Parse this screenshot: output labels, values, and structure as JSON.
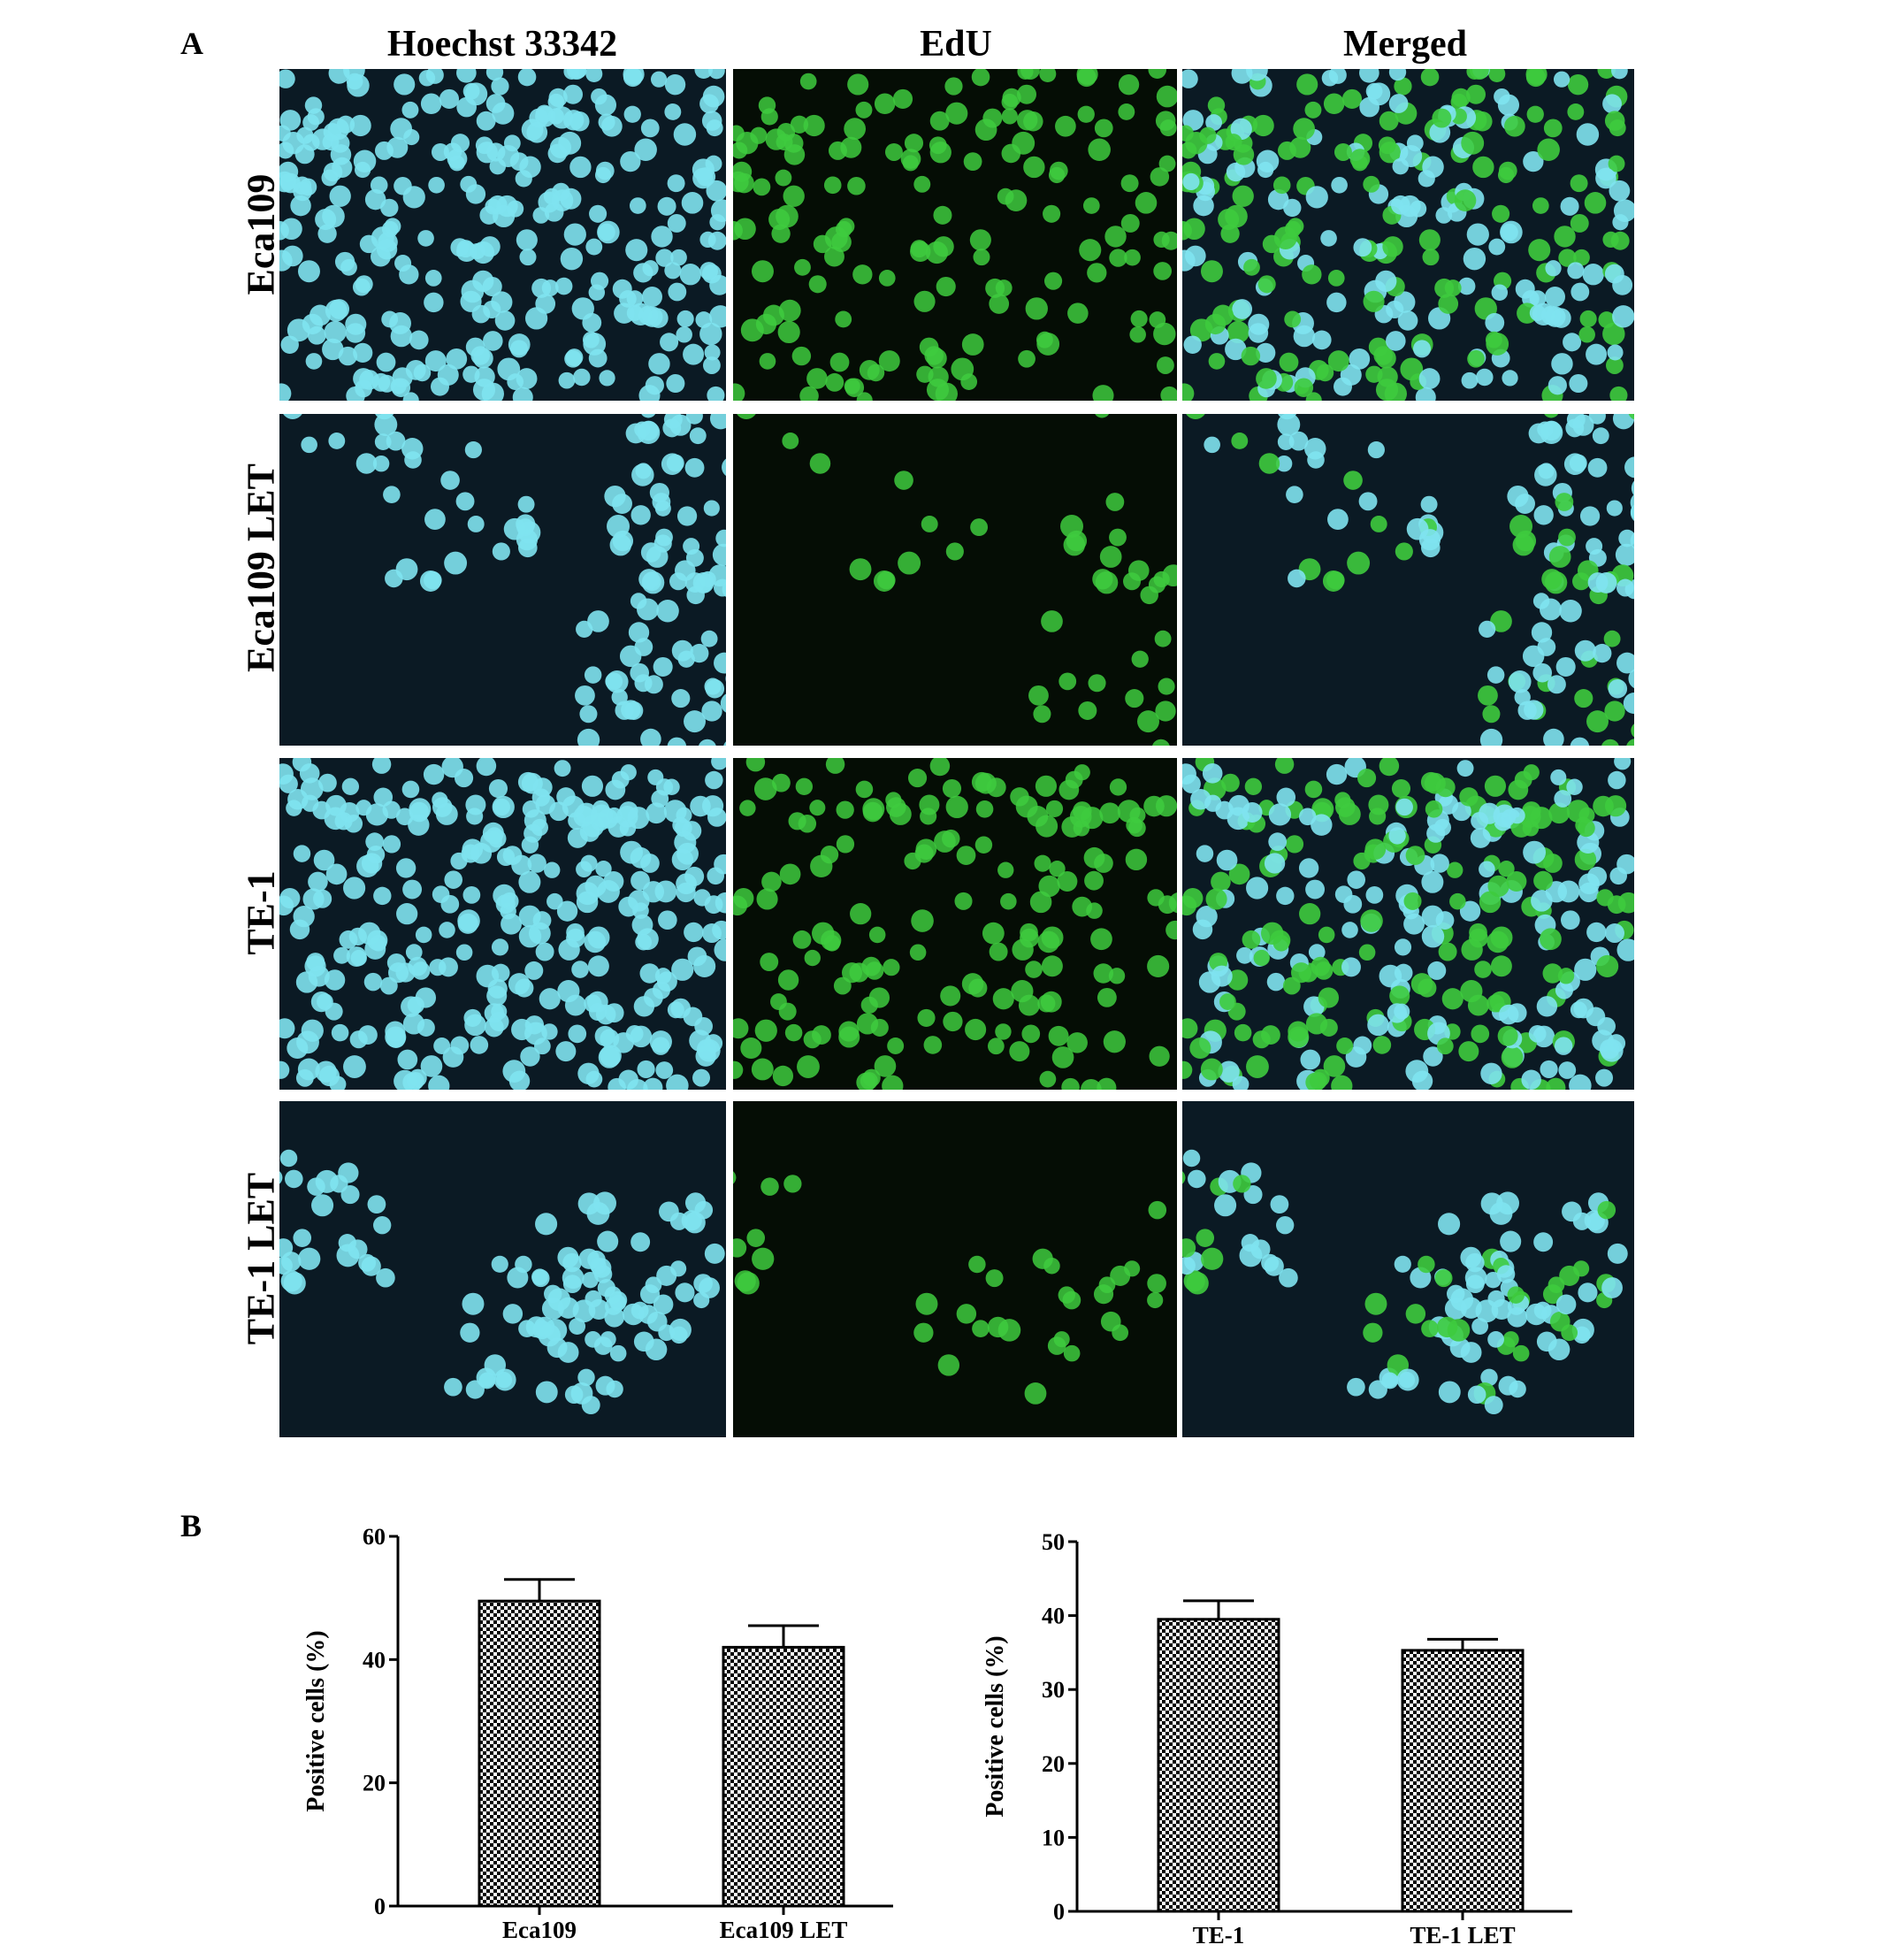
{
  "figure": {
    "panel_a_letter": "A",
    "panel_b_letter": "B",
    "columns": [
      "Hoechst 33342",
      "EdU",
      "Merged"
    ],
    "rows": [
      "Eca109",
      "Eca109 LET",
      "TE-1",
      "TE-1 LET"
    ]
  },
  "colors": {
    "hoechst": "#7fe3f0",
    "edu": "#3ecb3e",
    "background_dark": "#0b1a24"
  },
  "chart_data": [
    {
      "type": "bar",
      "categories": [
        "Eca109",
        "Eca109 LET"
      ],
      "values": [
        49.5,
        42
      ],
      "errors": [
        3.5,
        3.5
      ],
      "ylabel": "Positive cells (%)",
      "ylim": [
        0,
        60
      ],
      "yticks": [
        0,
        20,
        40,
        60
      ],
      "bar_fill": "checkerboard",
      "grid": false
    },
    {
      "type": "bar",
      "categories": [
        "TE-1",
        "TE-1 LET"
      ],
      "values": [
        39.5,
        35.3
      ],
      "errors": [
        2.5,
        1.5
      ],
      "ylabel": "Positive cells (%)",
      "ylim": [
        0,
        50
      ],
      "yticks": [
        0,
        10,
        20,
        30,
        40,
        50
      ],
      "bar_fill": "checkerboard",
      "grid": false
    }
  ]
}
